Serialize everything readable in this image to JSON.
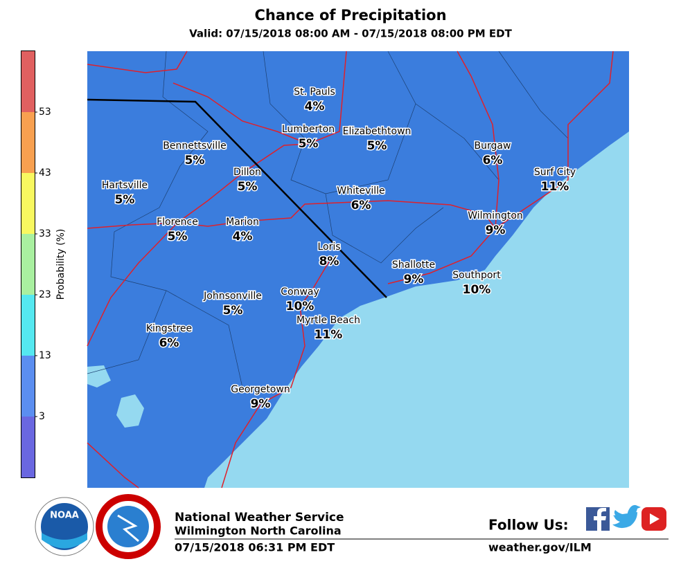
{
  "title": "Chance of Precipitation",
  "subtitle": "Valid: 07/15/2018 08:00 AM - 07/15/2018 08:00 PM EDT",
  "colorbar": {
    "label": "Probability (%)",
    "ticks": [
      3,
      13,
      23,
      33,
      43,
      53
    ],
    "lim": [
      -7,
      63
    ],
    "colors": [
      "#6a67e0",
      "#5b8ef0",
      "#55e8f0",
      "#a9f0a0",
      "#f8f860",
      "#f8a050",
      "#e06060"
    ]
  },
  "cities": [
    {
      "name": "St. Pauls",
      "chance": "4%"
    },
    {
      "name": "Lumberton",
      "chance": "5%"
    },
    {
      "name": "Elizabethtown",
      "chance": "5%"
    },
    {
      "name": "Bennettsville",
      "chance": "5%"
    },
    {
      "name": "Burgaw",
      "chance": "6%"
    },
    {
      "name": "Dillon",
      "chance": "5%"
    },
    {
      "name": "Surf City",
      "chance": "11%"
    },
    {
      "name": "Hartsville",
      "chance": "5%"
    },
    {
      "name": "Whiteville",
      "chance": "6%"
    },
    {
      "name": "Florence",
      "chance": "5%"
    },
    {
      "name": "Marion",
      "chance": "4%"
    },
    {
      "name": "Wilmington",
      "chance": "9%"
    },
    {
      "name": "Loris",
      "chance": "8%"
    },
    {
      "name": "Shallotte",
      "chance": "9%"
    },
    {
      "name": "Southport",
      "chance": "10%"
    },
    {
      "name": "Conway",
      "chance": "10%"
    },
    {
      "name": "Johnsonville",
      "chance": "5%"
    },
    {
      "name": "Myrtle Beach",
      "chance": "11%"
    },
    {
      "name": "Kingstree",
      "chance": "6%"
    },
    {
      "name": "Georgetown",
      "chance": "9%"
    }
  ],
  "footer": {
    "agency": "National Weather Service",
    "office": "Wilmington North Carolina",
    "issued": "07/15/2018 06:31 PM EDT",
    "follow": "Follow Us:",
    "url": "weather.gov/ILM",
    "noaa": "NOAA"
  }
}
